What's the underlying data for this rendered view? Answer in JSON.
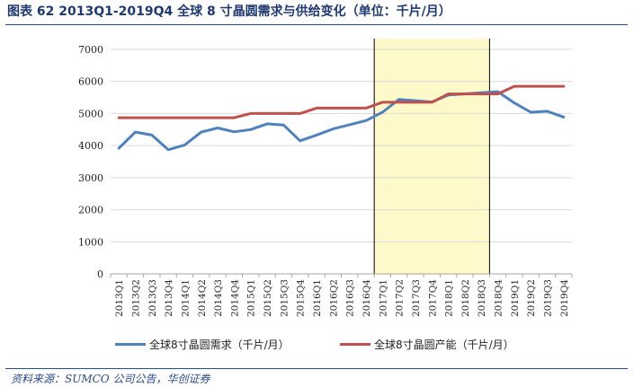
{
  "header": {
    "title": "图表 62 2013Q1-2019Q4 全球 8 寸晶圆需求与供给变化（单位：千片/月）"
  },
  "footer": {
    "source": "资料来源：SUMCO 公司公告，华创证券"
  },
  "chart_data": {
    "type": "line",
    "title": "",
    "xlabel": "",
    "ylabel": "",
    "ylim": [
      0,
      7000
    ],
    "yticks": [
      0,
      1000,
      2000,
      3000,
      4000,
      5000,
      6000,
      7000
    ],
    "grid": true,
    "legend_position": "bottom",
    "categories": [
      "2013Q1",
      "2013Q2",
      "2013Q3",
      "2013Q4",
      "2014Q1",
      "2014Q2",
      "2014Q3",
      "2014Q4",
      "2015Q1",
      "2015Q2",
      "2015Q3",
      "2015Q4",
      "2016Q1",
      "2016Q2",
      "2016Q3",
      "2016Q4",
      "2017Q1",
      "2017Q2",
      "2017Q3",
      "2017Q4",
      "2018Q1",
      "2018Q2",
      "2018Q3",
      "2018Q4",
      "2019Q1",
      "2019Q2",
      "2019Q3",
      "2019Q4"
    ],
    "highlight": {
      "from": "2017Q1",
      "to": "2018Q3",
      "color": "#fdf9c8"
    },
    "series": [
      {
        "name": "全球8寸晶圆需求（千片/月）",
        "color": "#4f81bd",
        "values": [
          3920,
          4420,
          4330,
          3870,
          4020,
          4420,
          4550,
          4430,
          4500,
          4680,
          4640,
          4150,
          4330,
          4520,
          4650,
          4780,
          5040,
          5440,
          5400,
          5360,
          5580,
          5610,
          5650,
          5680,
          5330,
          5040,
          5070,
          4890
        ]
      },
      {
        "name": "全球8寸晶圆产能（千片/月）",
        "color": "#c0504d",
        "values": [
          4870,
          4870,
          4870,
          4870,
          4870,
          4870,
          4870,
          4870,
          5000,
          5000,
          5000,
          5000,
          5170,
          5170,
          5170,
          5170,
          5350,
          5350,
          5350,
          5350,
          5610,
          5610,
          5610,
          5610,
          5850,
          5850,
          5850,
          5850
        ]
      }
    ]
  }
}
